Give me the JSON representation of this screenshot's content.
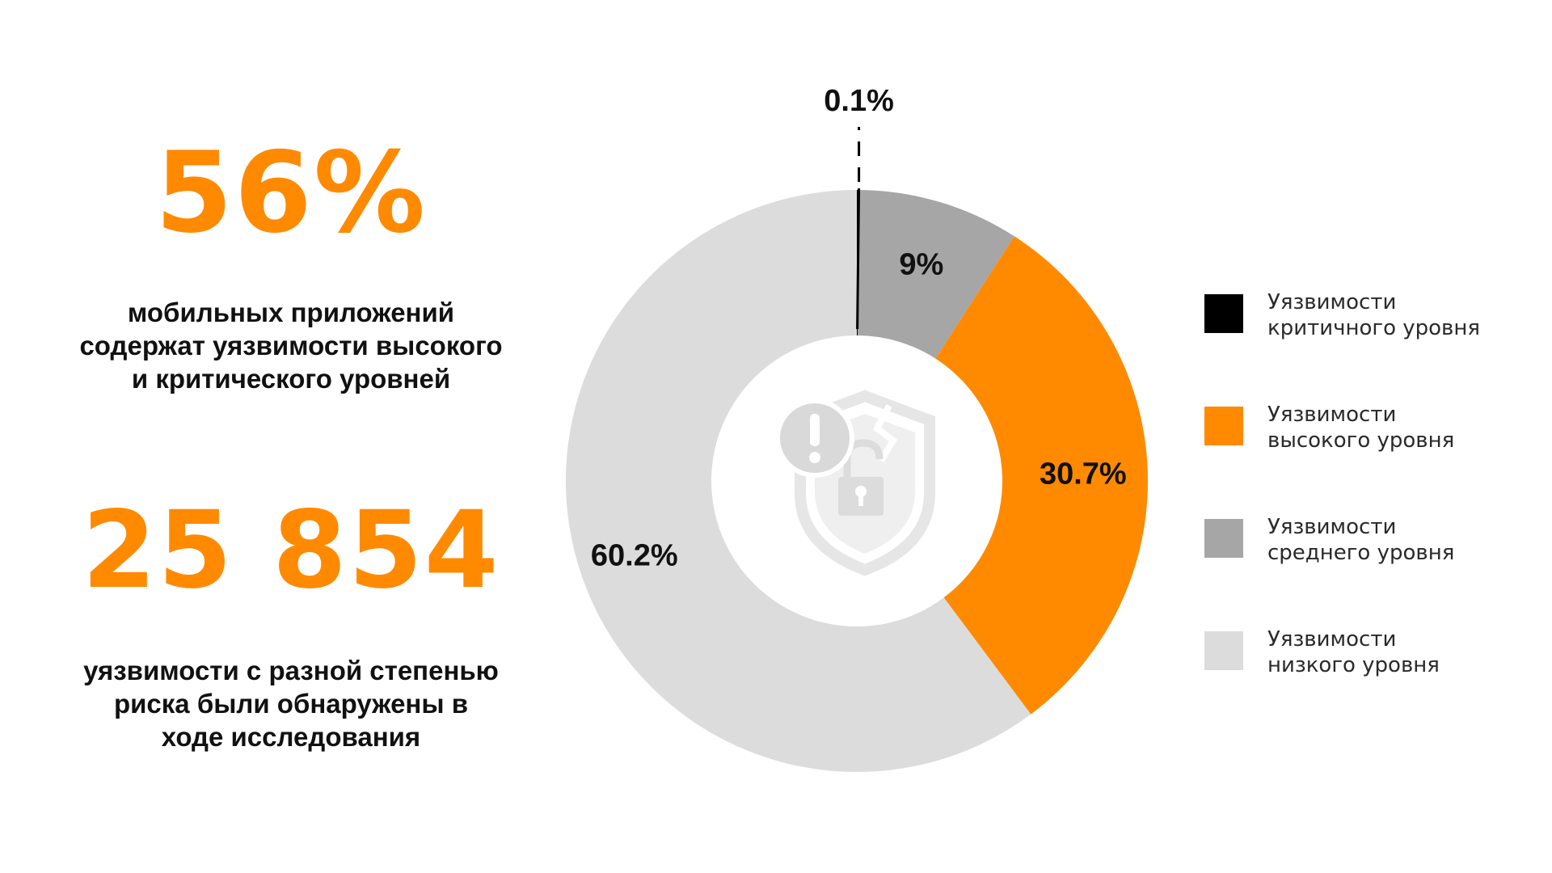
{
  "stats": [
    {
      "value": "56%",
      "caption": "мобильных приложений\nсодержат уязвимости высокого\nи критического уровней"
    },
    {
      "value": "25 854",
      "caption": "уязвимости с разной степенью\nриска были обнаружены в\nходе исследования"
    }
  ],
  "chart_data": {
    "type": "pie",
    "title": "",
    "categories": [
      "Уязвимости критичного уровня",
      "Уязвимости высокого уровня",
      "Уязвимости среднего уровня",
      "Уязвимости низкого уровня"
    ],
    "values": [
      0.1,
      30.7,
      9,
      60.2
    ],
    "labels": [
      "0.1%",
      "30.7%",
      "9%",
      "60.2%"
    ],
    "colors": [
      "#000000",
      "#ff8a00",
      "#a6a6a6",
      "#dcdcdc"
    ],
    "slice_order": [
      0,
      2,
      1,
      3
    ],
    "legend_position": "right",
    "center_icon": "shield-lock-warning-icon"
  },
  "legend": {
    "items": [
      {
        "label": "Уязвимости\nкритичного уровня",
        "color": "#000000"
      },
      {
        "label": "Уязвимости\nвысокого уровня",
        "color": "#ff8a00"
      },
      {
        "label": "Уязвимости\nсреднего уровня",
        "color": "#a6a6a6"
      },
      {
        "label": "Уязвимости\nнизкого уровня",
        "color": "#dcdcdc"
      }
    ]
  }
}
